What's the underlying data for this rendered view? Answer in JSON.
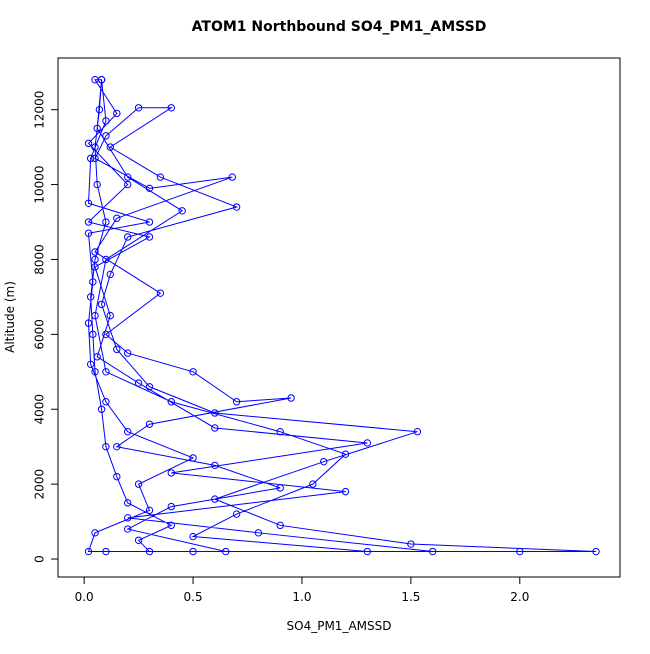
{
  "chart_data": {
    "type": "line",
    "title": "ATOM1 Northbound SO4_PM1_AMSSD",
    "x_label": "SO4_PM1_AMSSD",
    "y_label": "Altitude (m)",
    "x": [
      0.3,
      0.25,
      0.4,
      0.2,
      0.15,
      0.1,
      0.08,
      0.05,
      0.04,
      0.03,
      0.05,
      0.1,
      0.06,
      0.05,
      0.07,
      0.08,
      0.06,
      0.2,
      0.45,
      0.1,
      0.05,
      0.1,
      0.4,
      0.9,
      1.2,
      1.05,
      0.7,
      0.5,
      1.3,
      2.35,
      1.5,
      0.9,
      0.6,
      1.1,
      1.53,
      0.6,
      0.3,
      0.15,
      0.08,
      0.12,
      0.2,
      0.7,
      0.35,
      0.12,
      0.4,
      0.25,
      0.1,
      0.05,
      0.3,
      0.68,
      0.15,
      0.05,
      0.35,
      0.1,
      0.2,
      0.5,
      0.7,
      0.95,
      0.3,
      0.15,
      0.6,
      0.9,
      0.4,
      0.2,
      0.65,
      0.1,
      0.02,
      0.05,
      0.3,
      0.25,
      0.5,
      0.2,
      0.1,
      0.03,
      0.02,
      0.04,
      0.02,
      0.3,
      0.02,
      0.03,
      0.1,
      0.08,
      0.05,
      0.15,
      0.02,
      0.2,
      0.02,
      0.3,
      0.05,
      0.12,
      0.06,
      0.25,
      0.6,
      1.3,
      0.4,
      1.2,
      0.2,
      0.8,
      1.6,
      2.0,
      0.5
    ],
    "series": [
      {
        "name": "SO4_PM1_AMSSD",
        "color": "#0000ff",
        "values": [
          200,
          500,
          900,
          1500,
          2200,
          3000,
          4000,
          5000,
          6000,
          7000,
          8000,
          9000,
          10000,
          11000,
          12000,
          12800,
          11500,
          10200,
          9300,
          8000,
          6500,
          5000,
          4200,
          3400,
          2800,
          2000,
          1200,
          600,
          200,
          200,
          400,
          900,
          1600,
          2600,
          3400,
          3900,
          4600,
          5600,
          6800,
          7600,
          8600,
          9400,
          10200,
          11000,
          12050,
          12050,
          11300,
          10700,
          9900,
          10200,
          9100,
          8200,
          7100,
          6000,
          5500,
          5000,
          4200,
          4300,
          3600,
          3000,
          2500,
          1900,
          1400,
          800,
          200,
          200,
          200,
          700,
          1300,
          2000,
          2700,
          3400,
          4200,
          5200,
          6300,
          7400,
          8700,
          9000,
          9500,
          10700,
          11700,
          12800,
          12800,
          11900,
          11100,
          10000,
          9000,
          8600,
          7800,
          6500,
          5400,
          4700,
          3500,
          3100,
          2300,
          1800,
          1100,
          700,
          200,
          200,
          200
        ]
      }
    ],
    "xlim": [
      -0.12,
      2.46
    ],
    "ylim": [
      -480,
      13380
    ],
    "xticks": [
      {
        "value": 0,
        "label": "0.0"
      },
      0.5,
      {
        "value": 1,
        "label": "1.0"
      },
      1.5,
      {
        "value": 2,
        "label": "2.0"
      }
    ],
    "yticks": [
      0,
      2000,
      4000,
      6000,
      8000,
      10000,
      12000
    ]
  }
}
